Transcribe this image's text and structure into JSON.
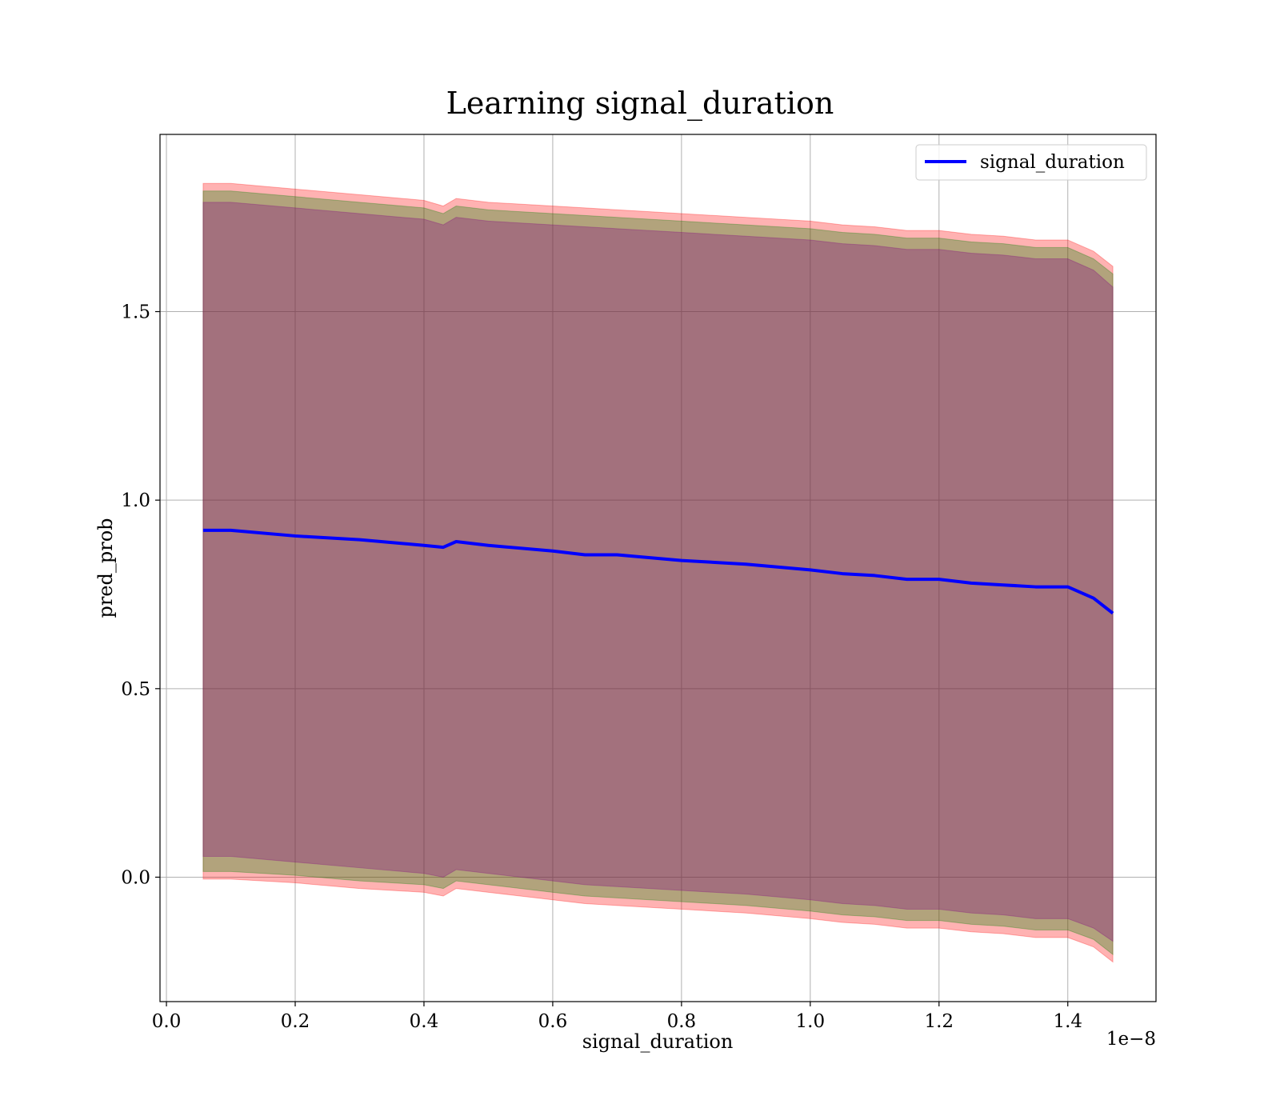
{
  "chart_data": {
    "type": "area",
    "title": "Learning signal_duration",
    "xlabel": "signal_duration",
    "ylabel": "pred_prob",
    "x_offset_text": "1e−8",
    "x_scale": 1e-08,
    "xlim": [
      -0.01,
      1.537
    ],
    "ylim": [
      -0.33,
      1.97
    ],
    "x_ticks": [
      0.0,
      0.2,
      0.4,
      0.6,
      0.8,
      1.0,
      1.2,
      1.4
    ],
    "x_tick_labels": [
      "0.0",
      "0.2",
      "0.4",
      "0.6",
      "0.8",
      "1.0",
      "1.2",
      "1.4"
    ],
    "y_ticks": [
      0.0,
      0.5,
      1.0,
      1.5
    ],
    "y_tick_labels": [
      "0.0",
      "0.5",
      "1.0",
      "1.5"
    ],
    "grid": true,
    "legend_position": "top-right",
    "x": [
      0.057,
      0.1,
      0.2,
      0.3,
      0.4,
      0.43,
      0.45,
      0.5,
      0.6,
      0.65,
      0.7,
      0.8,
      0.9,
      1.0,
      1.05,
      1.1,
      1.15,
      1.2,
      1.25,
      1.3,
      1.35,
      1.4,
      1.44,
      1.47
    ],
    "series": [
      {
        "name": "signal_duration",
        "color": "#0000ff",
        "values": [
          0.92,
          0.92,
          0.905,
          0.895,
          0.88,
          0.875,
          0.89,
          0.88,
          0.865,
          0.855,
          0.855,
          0.84,
          0.83,
          0.815,
          0.805,
          0.8,
          0.79,
          0.79,
          0.78,
          0.775,
          0.77,
          0.77,
          0.74,
          0.7
        ]
      }
    ],
    "bands": [
      {
        "color": "#ff0000",
        "opacity": 0.3,
        "upper": [
          1.84,
          1.84,
          1.825,
          1.81,
          1.795,
          1.78,
          1.8,
          1.79,
          1.78,
          1.775,
          1.77,
          1.76,
          1.75,
          1.74,
          1.73,
          1.725,
          1.715,
          1.715,
          1.705,
          1.7,
          1.69,
          1.69,
          1.66,
          1.62
        ],
        "lower": [
          -0.005,
          -0.005,
          -0.015,
          -0.03,
          -0.04,
          -0.05,
          -0.03,
          -0.04,
          -0.06,
          -0.07,
          -0.075,
          -0.085,
          -0.095,
          -0.11,
          -0.12,
          -0.125,
          -0.135,
          -0.135,
          -0.145,
          -0.15,
          -0.16,
          -0.16,
          -0.185,
          -0.225
        ]
      },
      {
        "color": "#008000",
        "opacity": 0.3,
        "upper": [
          1.82,
          1.82,
          1.805,
          1.79,
          1.775,
          1.76,
          1.78,
          1.77,
          1.76,
          1.755,
          1.75,
          1.74,
          1.73,
          1.72,
          1.71,
          1.705,
          1.695,
          1.695,
          1.685,
          1.68,
          1.67,
          1.67,
          1.64,
          1.6
        ],
        "lower": [
          0.015,
          0.015,
          0.005,
          -0.01,
          -0.02,
          -0.03,
          -0.01,
          -0.02,
          -0.04,
          -0.05,
          -0.055,
          -0.065,
          -0.075,
          -0.09,
          -0.1,
          -0.105,
          -0.115,
          -0.115,
          -0.125,
          -0.13,
          -0.14,
          -0.14,
          -0.165,
          -0.205
        ]
      },
      {
        "color": "#800080",
        "opacity": 0.3,
        "upper": [
          1.79,
          1.79,
          1.775,
          1.76,
          1.745,
          1.73,
          1.75,
          1.74,
          1.73,
          1.725,
          1.72,
          1.71,
          1.7,
          1.69,
          1.68,
          1.675,
          1.665,
          1.665,
          1.655,
          1.65,
          1.64,
          1.64,
          1.61,
          1.565
        ],
        "lower": [
          0.055,
          0.055,
          0.04,
          0.025,
          0.01,
          0.0,
          0.02,
          0.01,
          -0.01,
          -0.02,
          -0.025,
          -0.035,
          -0.045,
          -0.06,
          -0.07,
          -0.075,
          -0.085,
          -0.085,
          -0.095,
          -0.1,
          -0.11,
          -0.11,
          -0.135,
          -0.17
        ]
      }
    ]
  }
}
